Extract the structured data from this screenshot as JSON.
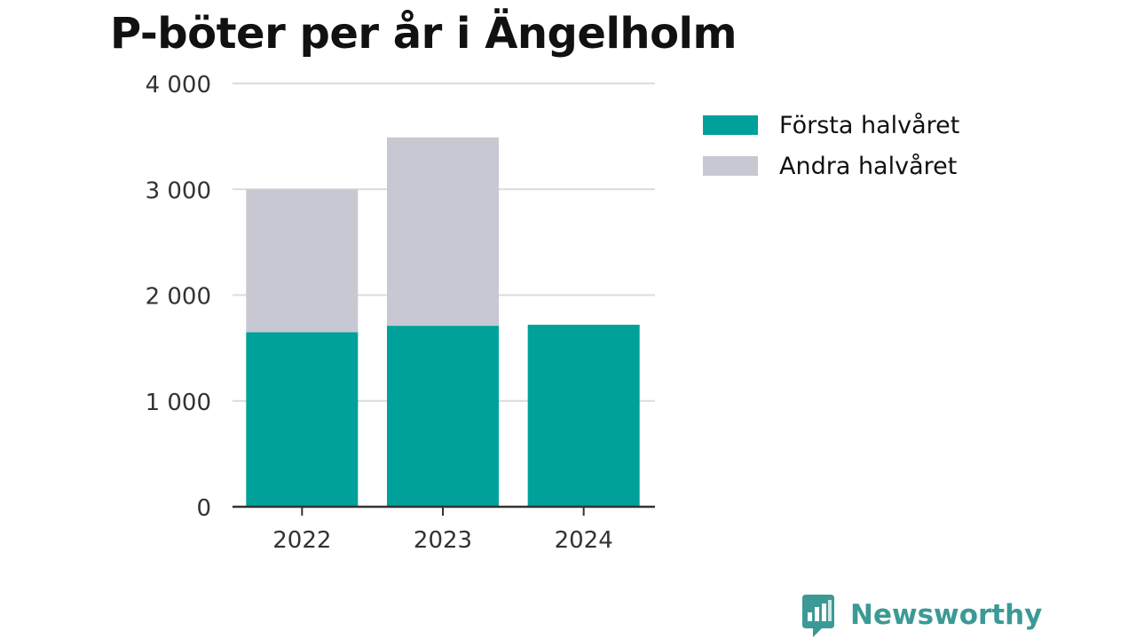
{
  "chart_data": {
    "type": "bar",
    "stacked": true,
    "title": "P-böter per år i Ängelholm",
    "xlabel": "",
    "ylabel": "",
    "categories": [
      "2022",
      "2023",
      "2024"
    ],
    "series": [
      {
        "name": "Första halvåret",
        "values": [
          1650,
          1710,
          1720
        ],
        "color": "#00a19a"
      },
      {
        "name": "Andra halvåret",
        "values": [
          1350,
          1780,
          0
        ],
        "color": "#c8c8d2"
      }
    ],
    "ylim": [
      0,
      4000
    ],
    "yticks": [
      0,
      1000,
      2000,
      3000,
      4000
    ],
    "ytick_labels": [
      "0",
      "1 000",
      "2 000",
      "3 000",
      "4 000"
    ],
    "grid": true,
    "legend_position": "right"
  },
  "brand": {
    "name": "Newsworthy",
    "color": "#3b9a95",
    "icon": "bar-chart-speech-bubble-icon"
  }
}
